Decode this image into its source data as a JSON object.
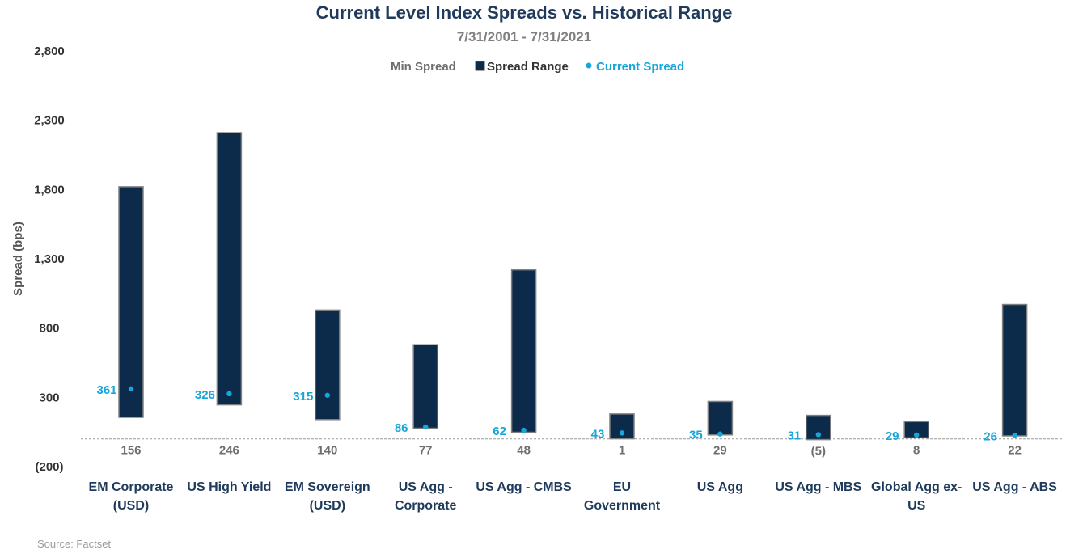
{
  "chart_data": {
    "type": "bar",
    "title": "Current Level Index Spreads vs. Historical Range",
    "subtitle": "7/31/2001 - 7/31/2021",
    "ylabel": "Spread (bps)",
    "ylim": [
      -200,
      2800
    ],
    "yticks": [
      {
        "value": 2800,
        "label": "2,800"
      },
      {
        "value": 2300,
        "label": "2,300"
      },
      {
        "value": 1800,
        "label": "1,800"
      },
      {
        "value": 1300,
        "label": "1,300"
      },
      {
        "value": 800,
        "label": "800"
      },
      {
        "value": 300,
        "label": "300"
      },
      {
        "value": -200,
        "label": "(200)"
      }
    ],
    "legend": [
      {
        "name": "Min Spread",
        "color": "#6e6e6e"
      },
      {
        "name": "Spread Range",
        "color": "#0c2a49"
      },
      {
        "name": "Current Spread",
        "color": "#17a6d9"
      }
    ],
    "categories": [
      {
        "label": [
          "EM Corporate",
          "(USD)"
        ],
        "min": 156,
        "min_label": "156",
        "max": 1820,
        "current": 361,
        "current_label": "361"
      },
      {
        "label": [
          "US High Yield"
        ],
        "min": 246,
        "min_label": "246",
        "max": 2210,
        "current": 326,
        "current_label": "326"
      },
      {
        "label": [
          "EM Sovereign",
          "(USD)"
        ],
        "min": 140,
        "min_label": "140",
        "max": 930,
        "current": 315,
        "current_label": "315"
      },
      {
        "label": [
          "US Agg -",
          "Corporate"
        ],
        "min": 77,
        "min_label": "77",
        "max": 680,
        "current": 86,
        "current_label": "86"
      },
      {
        "label": [
          "US Agg - CMBS"
        ],
        "min": 48,
        "min_label": "48",
        "max": 1220,
        "current": 62,
        "current_label": "62"
      },
      {
        "label": [
          "EU",
          "Government"
        ],
        "min": 1,
        "min_label": "1",
        "max": 180,
        "current": 43,
        "current_label": "43"
      },
      {
        "label": [
          "US Agg"
        ],
        "min": 29,
        "min_label": "29",
        "max": 270,
        "current": 35,
        "current_label": "35"
      },
      {
        "label": [
          "US Agg - MBS"
        ],
        "min": -5,
        "min_label": "(5)",
        "max": 170,
        "current": 31,
        "current_label": "31"
      },
      {
        "label": [
          "Global Agg ex-",
          "US"
        ],
        "min": 8,
        "min_label": "8",
        "max": 125,
        "current": 29,
        "current_label": "29"
      },
      {
        "label": [
          "US Agg - ABS"
        ],
        "min": 22,
        "min_label": "22",
        "max": 970,
        "current": 26,
        "current_label": "26"
      }
    ]
  },
  "source": "Source: Factset"
}
